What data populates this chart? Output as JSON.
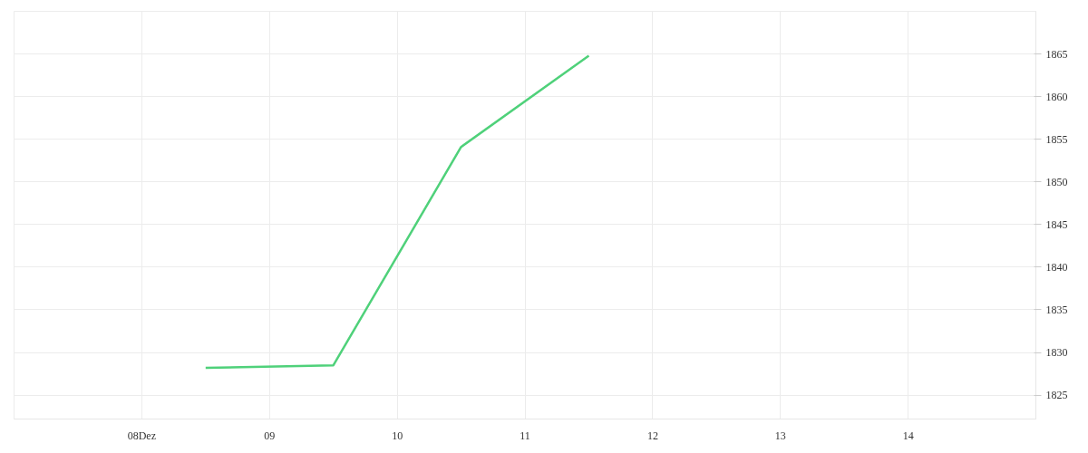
{
  "chart_data": {
    "type": "line",
    "x": [
      8.5,
      9.5,
      10.5,
      11.5
    ],
    "series": [
      {
        "color": "#4fd17a",
        "values": [
          1828.2,
          1828.5,
          1854.1,
          1864.8
        ]
      }
    ],
    "xlim": [
      7,
      15
    ],
    "xticks": [
      {
        "value": 8,
        "label": "08Dez"
      },
      {
        "value": 9,
        "label": "09"
      },
      10,
      11,
      12,
      13,
      14
    ],
    "ylim": [
      1822.2,
      1870
    ],
    "yticks": [
      1825,
      1830,
      1835,
      1840,
      1845,
      1850,
      1855,
      1860,
      1865
    ],
    "grid": true,
    "marker": "none",
    "line_style": "solid"
  }
}
